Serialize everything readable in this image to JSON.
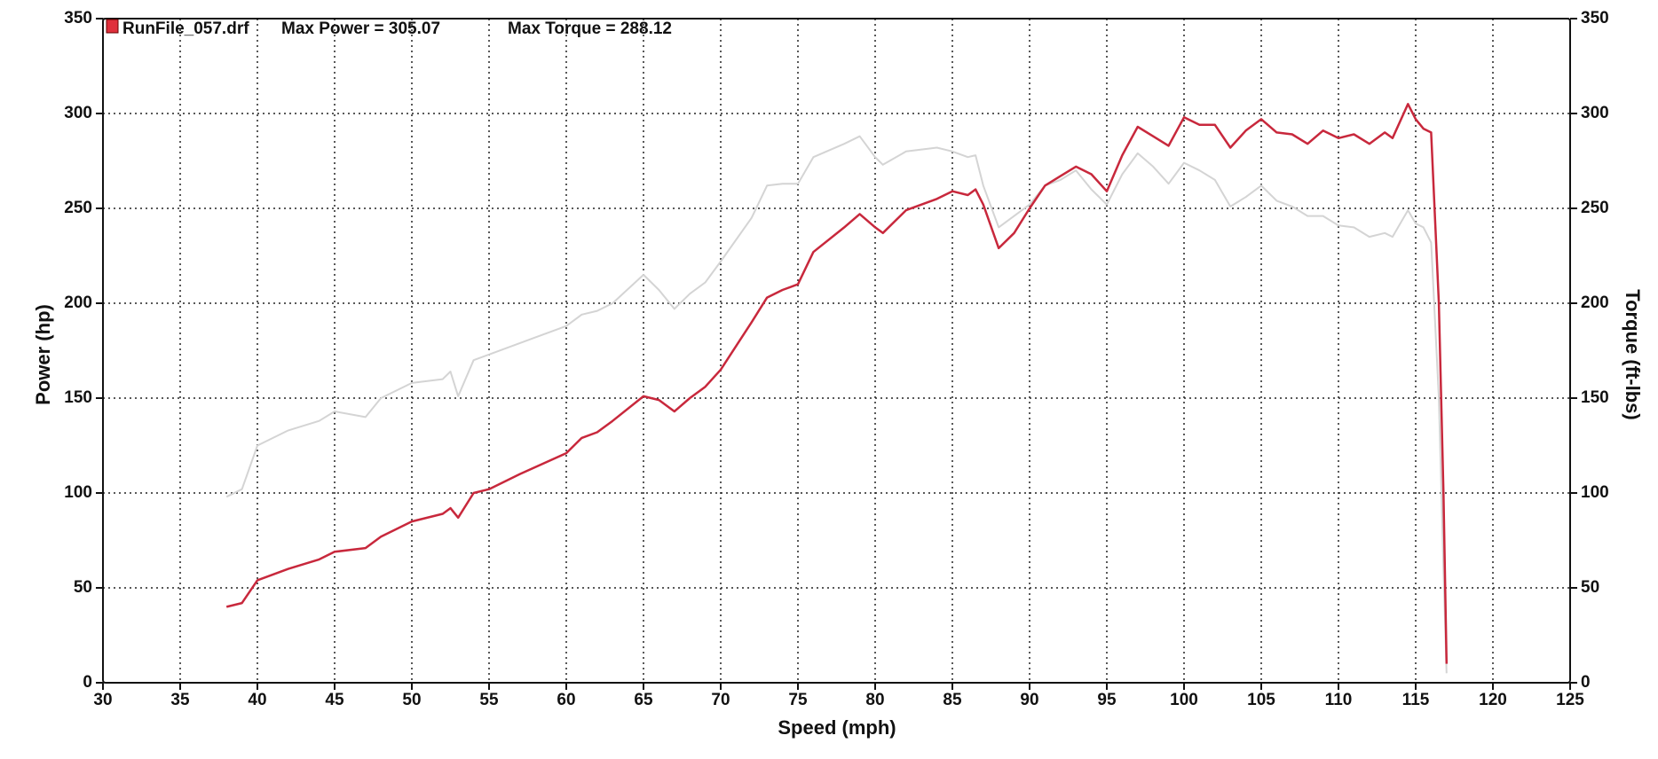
{
  "chart_data": {
    "type": "line",
    "legend": {
      "label": "RunFile_057.drf",
      "annotations": [
        "Max Power = 305.07",
        "Max Torque = 288.12"
      ],
      "color": "#e0303c"
    },
    "xlabel": "Speed (mph)",
    "ylabel": "Power (hp)",
    "y2label": "Torque (ft-lbs)",
    "xlim": [
      30,
      125
    ],
    "ylim": [
      0,
      350
    ],
    "y2lim": [
      0,
      350
    ],
    "xticks": [
      30,
      35,
      40,
      45,
      50,
      55,
      60,
      65,
      70,
      75,
      80,
      85,
      90,
      95,
      100,
      105,
      110,
      115,
      120,
      125
    ],
    "yticks": [
      0,
      50,
      100,
      150,
      200,
      250,
      300,
      350
    ],
    "y2ticks": [
      0,
      50,
      100,
      150,
      200,
      250,
      300,
      350
    ],
    "grid": true,
    "x": [
      38,
      39,
      40,
      42,
      44,
      45,
      47,
      48,
      50,
      52,
      52.5,
      53,
      54,
      55,
      57,
      60,
      61,
      62,
      63,
      65,
      66,
      67,
      68,
      69,
      70,
      72,
      73,
      74,
      75,
      76,
      78,
      79,
      80,
      80.5,
      82,
      84,
      85,
      86,
      86.5,
      87,
      88,
      89,
      90,
      91,
      92,
      93,
      94,
      95,
      96,
      97,
      98,
      99,
      100,
      101,
      102,
      103,
      104,
      105,
      106,
      107,
      108,
      109,
      110,
      111,
      112,
      113,
      113.5,
      114.5,
      115,
      115.5,
      116,
      116.5,
      116.8,
      117
    ],
    "series": [
      {
        "color": "#c8283c",
        "axis": "y",
        "values": [
          40,
          42,
          54,
          60,
          65,
          69,
          71,
          77,
          85,
          89,
          92,
          87,
          100,
          102,
          110,
          121,
          129,
          132,
          138,
          151,
          149,
          143,
          150,
          156,
          165,
          190,
          203,
          207,
          210,
          227,
          240,
          247,
          240,
          237,
          249,
          255,
          259,
          257,
          260,
          252,
          229,
          237,
          250,
          262,
          267,
          272,
          268,
          259,
          278,
          293,
          288,
          283,
          298,
          294,
          294,
          282,
          291,
          297,
          290,
          289,
          284,
          291,
          287,
          289,
          284,
          290,
          287,
          305,
          297,
          292,
          290,
          200,
          100,
          10
        ]
      },
      {
        "color": "#d4d4d4",
        "axis": "y2",
        "values": [
          98,
          102,
          125,
          133,
          138,
          143,
          140,
          150,
          158,
          160,
          164,
          151,
          170,
          173,
          179,
          188,
          194,
          196,
          200,
          215,
          207,
          197,
          205,
          211,
          222,
          245,
          262,
          263,
          263,
          277,
          284,
          288,
          277,
          273,
          280,
          282,
          280,
          277,
          278,
          262,
          240,
          246,
          252,
          262,
          265,
          270,
          260,
          252,
          268,
          279,
          272,
          263,
          274,
          270,
          265,
          251,
          256,
          262,
          254,
          251,
          246,
          246,
          241,
          240,
          235,
          237,
          235,
          249,
          242,
          240,
          232,
          150,
          60,
          5
        ]
      }
    ]
  }
}
